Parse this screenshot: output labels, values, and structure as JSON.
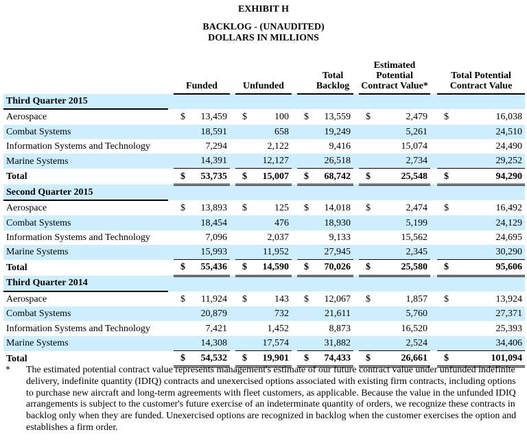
{
  "title": "EXHIBIT H",
  "subtitle_1": "BACKLOG - (UNAUDITED)",
  "subtitle_2": "DOLLARS IN MILLIONS",
  "columns": [
    "Funded",
    "Unfunded",
    "Total Backlog",
    "Estimated Potential Contract Value*",
    "Total Potential Contract Value"
  ],
  "currency_symbol": "$",
  "sections": [
    {
      "label": "Third Quarter 2015",
      "rows": [
        {
          "label": "Aerospace",
          "values": [
            "13,459",
            "100",
            "13,559",
            "2,479",
            "16,038"
          ]
        },
        {
          "label": "Combat Systems",
          "values": [
            "18,591",
            "658",
            "19,249",
            "5,261",
            "24,510"
          ]
        },
        {
          "label": "Information Systems and Technology",
          "values": [
            "7,294",
            "2,122",
            "9,416",
            "15,074",
            "24,490"
          ]
        },
        {
          "label": "Marine Systems",
          "values": [
            "14,391",
            "12,127",
            "26,518",
            "2,734",
            "29,252"
          ]
        }
      ],
      "total": {
        "label": "Total",
        "values": [
          "53,735",
          "15,007",
          "68,742",
          "25,548",
          "94,290"
        ]
      }
    },
    {
      "label": "Second Quarter 2015",
      "rows": [
        {
          "label": "Aerospace",
          "values": [
            "13,893",
            "125",
            "14,018",
            "2,474",
            "16,492"
          ]
        },
        {
          "label": "Combat Systems",
          "values": [
            "18,454",
            "476",
            "18,930",
            "5,199",
            "24,129"
          ]
        },
        {
          "label": "Information Systems and Technology",
          "values": [
            "7,096",
            "2,037",
            "9,133",
            "15,562",
            "24,695"
          ]
        },
        {
          "label": "Marine Systems",
          "values": [
            "15,993",
            "11,952",
            "27,945",
            "2,345",
            "30,290"
          ]
        }
      ],
      "total": {
        "label": "Total",
        "values": [
          "55,436",
          "14,590",
          "70,026",
          "25,580",
          "95,606"
        ]
      }
    },
    {
      "label": "Third Quarter 2014",
      "rows": [
        {
          "label": "Aerospace",
          "values": [
            "11,924",
            "143",
            "12,067",
            "1,857",
            "13,924"
          ]
        },
        {
          "label": "Combat Systems",
          "values": [
            "20,879",
            "732",
            "21,611",
            "5,760",
            "27,371"
          ]
        },
        {
          "label": "Information Systems and Technology",
          "values": [
            "7,421",
            "1,452",
            "8,873",
            "16,520",
            "25,393"
          ]
        },
        {
          "label": "Marine Systems",
          "values": [
            "14,308",
            "17,574",
            "31,882",
            "2,524",
            "34,406"
          ]
        }
      ],
      "total": {
        "label": "Total",
        "values": [
          "54,532",
          "19,901",
          "74,433",
          "26,661",
          "101,094"
        ]
      }
    }
  ],
  "footnote": {
    "marker": "*",
    "text": "The estimated potential contract value represents management's estimate of our future contract value under unfunded indefinite delivery, indefinite quantity (IDIQ) contracts and unexercised options associated with existing firm contracts, including options to purchase new aircraft and long-term agreements with fleet customers, as applicable. Because the value in the unfunded IDIQ arrangements is subject to the customer's future exercise of an indeterminate quantity of orders, we recognize these contracts in backlog only when they are funded. Unexercised options are recognized in backlog when the customer exercises the option and establishes a firm order."
  },
  "colors": {
    "shade": "#cceeff"
  }
}
